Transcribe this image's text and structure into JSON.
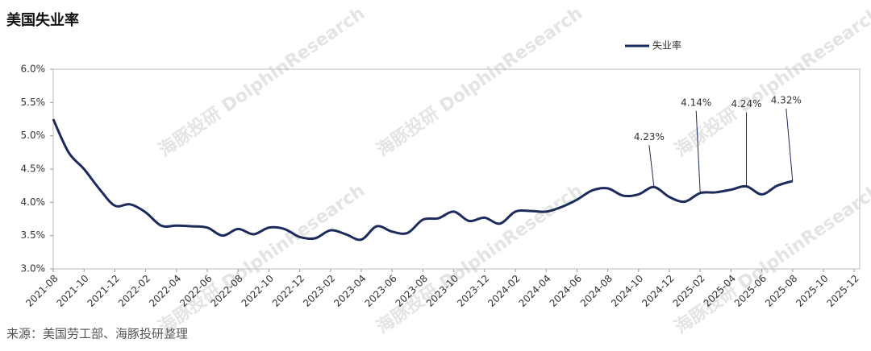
{
  "chart_data": {
    "type": "line",
    "title": "美国失业率",
    "source": "来源：美国劳工部、海豚投研整理",
    "watermark": "海豚投研 DolphinResearch",
    "categories": [
      "2021-08",
      null,
      "2021-10",
      null,
      "2021-12",
      null,
      "2022-02",
      null,
      "2022-04",
      null,
      "2022-06",
      null,
      "2022-08",
      null,
      "2022-10",
      null,
      "2022-12",
      null,
      "2023-02",
      null,
      "2023-04",
      null,
      "2023-06",
      null,
      "2023-08",
      null,
      "2023-10",
      null,
      "2023-12",
      null,
      "2024-02",
      null,
      "2024-04",
      null,
      "2024-06",
      null,
      "2024-08",
      null,
      "2024-10",
      null,
      "2024-12",
      null,
      "2025-02",
      null,
      "2025-04",
      null,
      "2025-06",
      null,
      "2025-08",
      null,
      "2025-10",
      null,
      "2025-12"
    ],
    "series": [
      {
        "name": "失业率",
        "color": "#1c2a5c",
        "values": [
          5.25,
          4.75,
          4.5,
          4.2,
          3.95,
          3.97,
          3.85,
          3.65,
          3.65,
          3.64,
          3.62,
          3.5,
          3.6,
          3.52,
          3.62,
          3.6,
          3.48,
          3.46,
          3.58,
          3.52,
          3.44,
          3.64,
          3.56,
          3.54,
          3.74,
          3.76,
          3.86,
          3.72,
          3.77,
          3.68,
          3.86,
          3.87,
          3.86,
          3.93,
          4.04,
          4.18,
          4.21,
          4.1,
          4.12,
          4.23,
          4.08,
          4.01,
          4.14,
          4.15,
          4.19,
          4.24,
          4.12,
          4.25,
          4.32,
          null,
          null,
          null,
          null
        ],
        "value_labels": [
          null,
          null,
          null,
          null,
          null,
          null,
          null,
          null,
          null,
          null,
          null,
          null,
          null,
          null,
          null,
          null,
          null,
          null,
          null,
          null,
          null,
          null,
          null,
          null,
          null,
          null,
          null,
          null,
          null,
          null,
          null,
          null,
          null,
          null,
          null,
          null,
          null,
          null,
          null,
          "4.23%",
          null,
          null,
          "4.14%",
          null,
          null,
          "4.24%",
          null,
          null,
          "4.32%",
          null,
          null,
          null,
          null
        ]
      }
    ],
    "ylim": [
      3,
      6
    ],
    "yticks": [
      {
        "value": 3,
        "label": "3.0%"
      },
      {
        "value": 3.5,
        "label": "3.5%"
      },
      {
        "value": 4,
        "label": "4.0%"
      },
      {
        "value": 4.5,
        "label": "4.5%"
      },
      {
        "value": 5,
        "label": "5.0%"
      },
      {
        "value": 5.5,
        "label": "5.5%"
      },
      {
        "value": 6,
        "label": "6.0%"
      }
    ],
    "legend": "top-right"
  }
}
